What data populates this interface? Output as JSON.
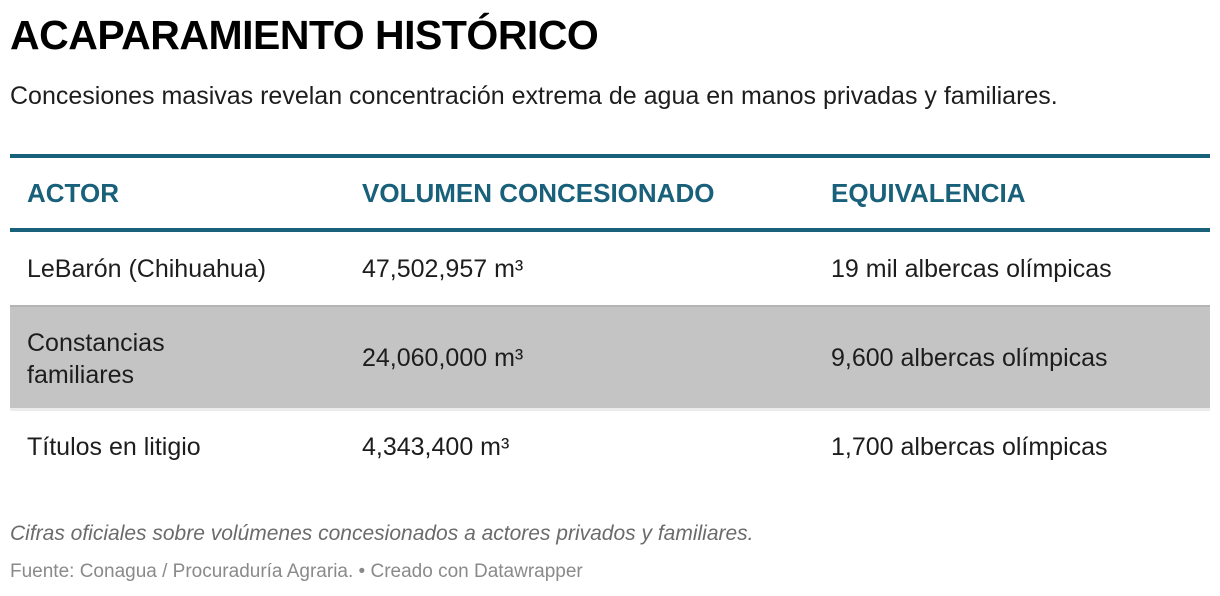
{
  "header": {
    "title": "ACAPARAMIENTO HISTÓRICO",
    "subtitle": "Concesiones masivas revelan concentración extrema de agua en manos privadas y familiares."
  },
  "table": {
    "columns": [
      "ACTOR",
      "VOLUMEN CONCESIONADO",
      "EQUIVALENCIA"
    ],
    "rows": [
      {
        "actor": "LeBarón (Chihuahua)",
        "volumen": "47,502,957 m³",
        "equivalencia": "19 mil albercas olímpicas",
        "highlighted": false
      },
      {
        "actor": "Constancias familiares",
        "volumen": "24,060,000 m³",
        "equivalencia": "9,600 albercas olímpicas",
        "highlighted": true
      },
      {
        "actor": "Títulos en litigio",
        "volumen": "4,343,400 m³",
        "equivalencia": "1,700 albercas olímpicas",
        "highlighted": false
      }
    ]
  },
  "footer": {
    "notes": "Cifras oficiales sobre volúmenes concesionados a actores privados y familiares.",
    "source": "Fuente: Conagua / Procuraduría Agraria. • Creado con Datawrapper"
  },
  "colors": {
    "accent": "#19607a",
    "highlight_row": "#c4c4c4",
    "text": "#1d1d1d",
    "notes": "#6b6b6b",
    "source": "#8a8a8a"
  }
}
